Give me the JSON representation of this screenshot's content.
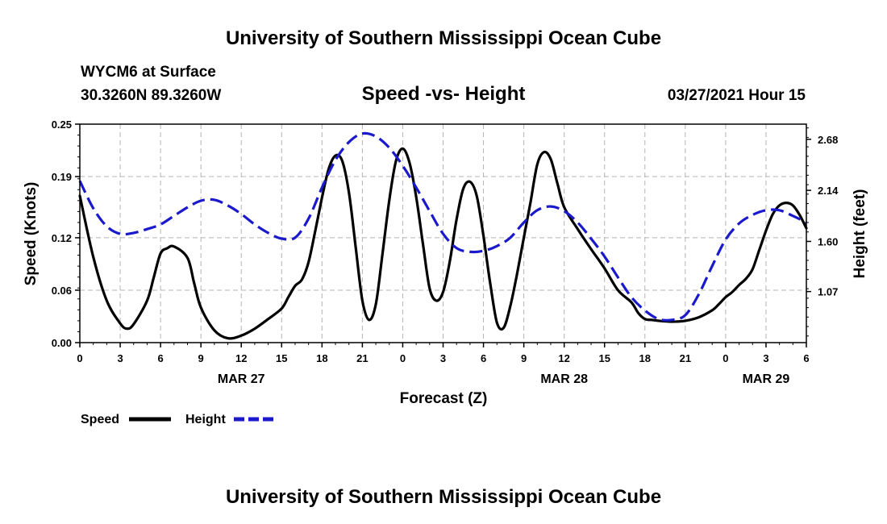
{
  "header": {
    "title": "University of Southern Mississippi Ocean Cube",
    "station": "WYCM6 at Surface",
    "coords": "30.3260N  89.3260W",
    "subtitle": "Speed -vs- Height",
    "datetime": "03/27/2021 Hour 15"
  },
  "footer": {
    "title": "University of Southern Mississippi Ocean Cube"
  },
  "legend": {
    "speed_label": "Speed",
    "height_label": "Height"
  },
  "colors": {
    "speed": "#000000",
    "height": "#1a1acc",
    "grid": "#b4b4b4"
  },
  "chart_data": {
    "type": "line",
    "title": "Speed -vs- Height",
    "xlabel": "Forecast (Z)",
    "ylabel": "Speed (Knots)",
    "y2label": "Height (feet)",
    "xlim": [
      0,
      54
    ],
    "ylim": [
      0,
      0.25
    ],
    "y2lim": [
      0.53,
      2.84
    ],
    "x_ticks": [
      0,
      3,
      6,
      9,
      12,
      15,
      18,
      21,
      24,
      27,
      30,
      33,
      36,
      39,
      42,
      45,
      48,
      51,
      54
    ],
    "x_tick_labels": [
      "0",
      "3",
      "6",
      "9",
      "12",
      "15",
      "18",
      "21",
      "0",
      "3",
      "6",
      "9",
      "12",
      "15",
      "18",
      "21",
      "0",
      "3",
      "6"
    ],
    "y_ticks": [
      0.0,
      0.06,
      0.12,
      0.19,
      0.25
    ],
    "y_tick_labels": [
      "0.00",
      "0.06",
      "0.12",
      "0.19",
      "0.25"
    ],
    "y2_ticks": [
      1.07,
      1.6,
      2.14,
      2.68
    ],
    "y2_tick_labels": [
      "1.07",
      "1.60",
      "2.14",
      "2.68"
    ],
    "date_labels": [
      {
        "x": 12,
        "label": "MAR 27"
      },
      {
        "x": 36,
        "label": "MAR 28"
      },
      {
        "x": 51,
        "label": "MAR 29"
      }
    ],
    "grid": true,
    "legend_position": "bottom-left",
    "series": [
      {
        "name": "Speed",
        "axis": "left",
        "x": [
          0,
          1,
          2,
          3,
          3.5,
          4,
          5,
          5.5,
          6,
          6.5,
          7,
          8,
          8.5,
          9,
          10,
          11,
          12,
          13,
          14,
          15,
          15.5,
          16,
          16.5,
          17,
          17.5,
          18,
          18.5,
          19,
          19.5,
          20,
          20.5,
          21,
          21.5,
          22,
          22.5,
          23,
          23.5,
          24,
          24.5,
          25,
          25.5,
          26,
          26.5,
          27,
          27.5,
          28,
          28.5,
          29,
          29.5,
          30,
          30.5,
          31,
          31.5,
          32,
          32.5,
          33,
          33.5,
          34,
          34.5,
          35,
          35.5,
          36,
          37,
          38,
          39,
          40,
          41,
          41.5,
          42,
          42.5,
          43,
          44,
          45,
          46,
          47,
          47.5,
          48,
          48.5,
          49,
          49.5,
          50,
          50.5,
          51,
          51.5,
          52,
          52.5,
          53,
          53.5,
          54
        ],
        "values": [
          0.168,
          0.098,
          0.048,
          0.022,
          0.016,
          0.021,
          0.048,
          0.075,
          0.102,
          0.108,
          0.11,
          0.097,
          0.068,
          0.04,
          0.014,
          0.005,
          0.008,
          0.016,
          0.027,
          0.039,
          0.052,
          0.065,
          0.072,
          0.092,
          0.128,
          0.166,
          0.199,
          0.214,
          0.208,
          0.172,
          0.11,
          0.048,
          0.026,
          0.044,
          0.102,
          0.163,
          0.208,
          0.222,
          0.206,
          0.167,
          0.113,
          0.062,
          0.048,
          0.058,
          0.093,
          0.141,
          0.176,
          0.184,
          0.168,
          0.122,
          0.068,
          0.023,
          0.017,
          0.042,
          0.079,
          0.12,
          0.161,
          0.204,
          0.218,
          0.21,
          0.182,
          0.155,
          0.13,
          0.107,
          0.085,
          0.06,
          0.046,
          0.034,
          0.027,
          0.026,
          0.025,
          0.024,
          0.025,
          0.029,
          0.037,
          0.044,
          0.052,
          0.058,
          0.066,
          0.073,
          0.084,
          0.106,
          0.128,
          0.147,
          0.157,
          0.16,
          0.157,
          0.146,
          0.131
        ]
      },
      {
        "name": "Height",
        "axis": "right",
        "x": [
          0,
          1,
          2,
          3,
          4,
          5,
          6,
          7,
          8,
          9,
          10,
          11,
          12,
          13,
          14,
          15,
          16,
          17,
          18,
          19,
          20,
          21,
          22,
          23,
          24,
          25,
          26,
          27,
          28,
          29,
          30,
          31,
          32,
          33,
          34,
          35,
          36,
          37,
          38,
          39,
          40,
          41,
          42,
          43,
          44,
          45,
          46,
          47,
          48,
          49,
          50,
          51,
          52,
          53,
          54
        ],
        "values": [
          2.24,
          1.95,
          1.76,
          1.68,
          1.69,
          1.73,
          1.78,
          1.87,
          1.96,
          2.03,
          2.04,
          1.98,
          1.89,
          1.78,
          1.69,
          1.63,
          1.64,
          1.84,
          2.17,
          2.46,
          2.65,
          2.74,
          2.71,
          2.59,
          2.4,
          2.17,
          1.92,
          1.68,
          1.53,
          1.49,
          1.5,
          1.55,
          1.64,
          1.8,
          1.93,
          1.97,
          1.92,
          1.8,
          1.63,
          1.44,
          1.22,
          1.01,
          0.87,
          0.78,
          0.77,
          0.82,
          1.04,
          1.34,
          1.62,
          1.79,
          1.88,
          1.93,
          1.93,
          1.87,
          1.8
        ]
      }
    ]
  }
}
